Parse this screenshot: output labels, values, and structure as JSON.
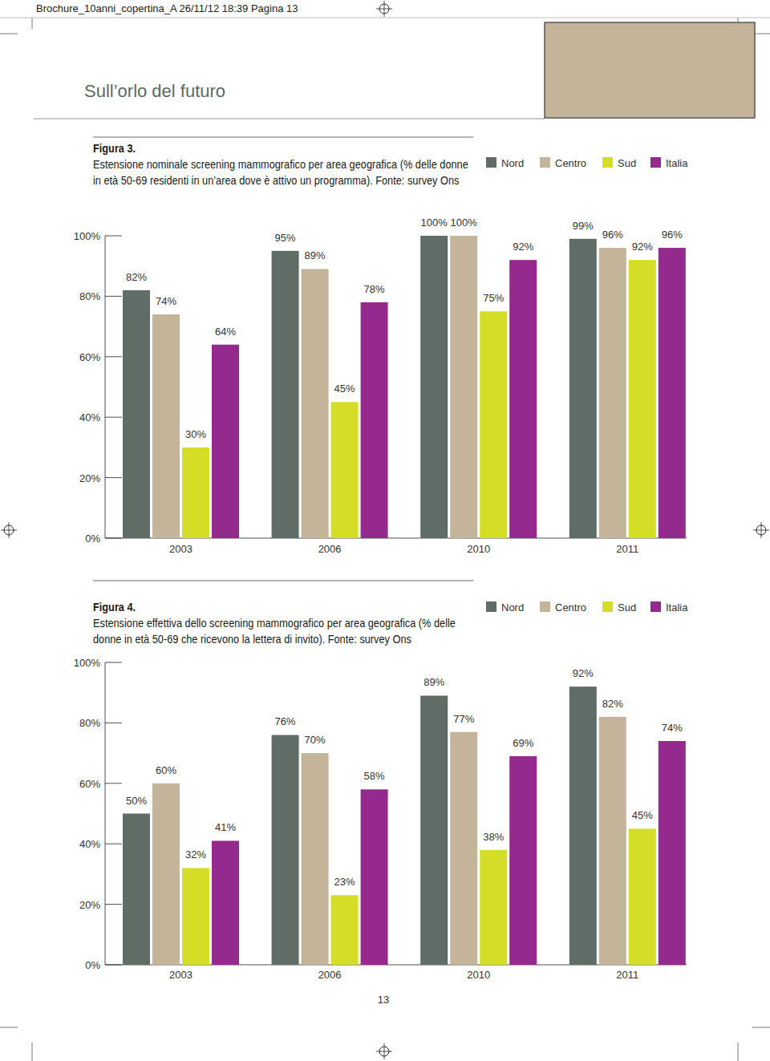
{
  "page": {
    "header": "Brochure_10anni_copertina_A  26/11/12  18:39  Pagina 13",
    "heading": "Sull’orlo del futuro",
    "page_number": "13"
  },
  "chart_data": [
    {
      "type": "bar",
      "title": "Figura 3.",
      "subtitle": "Estensione nominale screening mammografico per area geografica (% delle donne in età 50-69 residenti in un’area dove è attivo un programma). Fonte: survey Ons",
      "categories": [
        "2003",
        "2006",
        "2010",
        "2011"
      ],
      "series": [
        {
          "name": "Nord",
          "color": "#5f6d66",
          "values": [
            82,
            95,
            100,
            99
          ],
          "value_labels": [
            "82%",
            "95%",
            "100%",
            "99%"
          ]
        },
        {
          "name": "Centro",
          "color": "#c4b59a",
          "values": [
            74,
            89,
            100,
            96
          ],
          "value_labels": [
            "74%",
            "89%",
            "100%",
            "96%"
          ]
        },
        {
          "name": "Sud",
          "color": "#d5de27",
          "values": [
            30,
            45,
            75,
            92
          ],
          "value_labels": [
            "30%",
            "45%",
            "75%",
            "92%"
          ]
        },
        {
          "name": "Italia",
          "color": "#952a8e",
          "values": [
            64,
            78,
            92,
            96
          ],
          "value_labels": [
            "64%",
            "78%",
            "92%",
            "96%"
          ]
        }
      ],
      "ylim": [
        0,
        100
      ],
      "yticks": [
        {
          "value": 0,
          "label": "0%"
        },
        {
          "value": 20,
          "label": "20%"
        },
        {
          "value": 40,
          "label": "40%"
        },
        {
          "value": 60,
          "label": "60%"
        },
        {
          "value": 80,
          "label": "80%"
        },
        {
          "value": 100,
          "label": "100%"
        }
      ],
      "grid": false,
      "legend": "top-right",
      "data_labels": true
    },
    {
      "type": "bar",
      "title": "Figura 4.",
      "subtitle": "Estensione effettiva dello screening mammografico per area geografica (% delle donne in età 50-69 che ricevono la lettera di invito). Fonte: survey Ons",
      "categories": [
        "2003",
        "2006",
        "2010",
        "2011"
      ],
      "series": [
        {
          "name": "Nord",
          "color": "#5f6d66",
          "values": [
            50,
            76,
            89,
            92
          ],
          "value_labels": [
            "50%",
            "76%",
            "89%",
            "92%"
          ]
        },
        {
          "name": "Centro",
          "color": "#c4b59a",
          "values": [
            60,
            70,
            77,
            82
          ],
          "value_labels": [
            "60%",
            "70%",
            "77%",
            "82%"
          ]
        },
        {
          "name": "Sud",
          "color": "#d5de27",
          "values": [
            32,
            23,
            38,
            45
          ],
          "value_labels": [
            "32%",
            "23%",
            "38%",
            "45%"
          ]
        },
        {
          "name": "Italia",
          "color": "#952a8e",
          "values": [
            41,
            58,
            69,
            74
          ],
          "value_labels": [
            "41%",
            "58%",
            "69%",
            "74%"
          ]
        }
      ],
      "ylim": [
        0,
        100
      ],
      "yticks": [
        {
          "value": 0,
          "label": "0%"
        },
        {
          "value": 20,
          "label": "20%"
        },
        {
          "value": 40,
          "label": "40%"
        },
        {
          "value": 60,
          "label": "60%"
        },
        {
          "value": 80,
          "label": "80%"
        },
        {
          "value": 100,
          "label": "100%"
        }
      ],
      "grid": false,
      "legend": "top-right",
      "data_labels": true
    }
  ]
}
